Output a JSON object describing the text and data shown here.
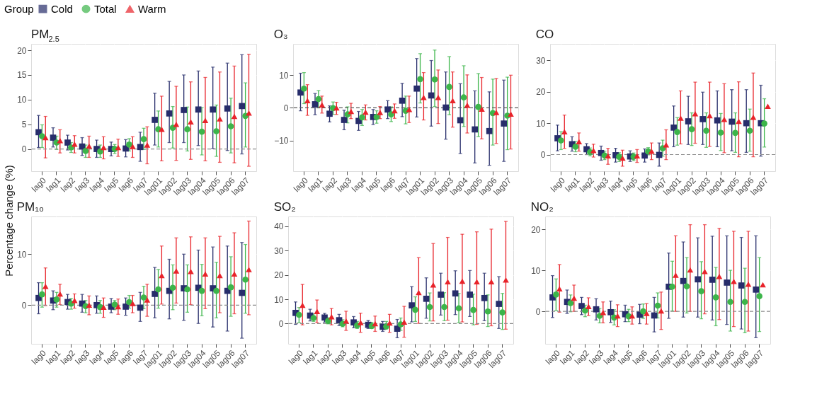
{
  "chart_data": [
    {
      "type": "scatter",
      "title": "PM$_{2.5}$",
      "ylabel": "Percentage change (%)",
      "legend_title": "Group",
      "legend": "top",
      "grid": true,
      "categories": [
        "lag0",
        "lag1",
        "lag2",
        "lag3",
        "lag4",
        "lag5",
        "lag6",
        "lag7",
        "lag01",
        "lag02",
        "lag03",
        "lag04",
        "lag05",
        "lag06",
        "lag07"
      ],
      "ylim": [
        -4.5,
        21.3
      ],
      "yticks": [
        0,
        5,
        10,
        15,
        20
      ],
      "ref_lines": [
        {
          "axis": "y",
          "value": 0,
          "color": "#8c8c8c",
          "line_style": "dashed"
        }
      ],
      "series": [
        {
          "name": "Cold",
          "color": "#272d6b",
          "marker": "square",
          "values": [
            3.4,
            2.3,
            1.3,
            0.5,
            0.0,
            0.0,
            0.1,
            0.4,
            5.9,
            7.2,
            7.9,
            8.0,
            8.0,
            8.2,
            8.7
          ],
          "errors": [
            [
              0.3,
              6.8
            ],
            [
              0.4,
              4.3
            ],
            [
              -0.2,
              2.8
            ],
            [
              -1.3,
              2.3
            ],
            [
              -1.7,
              1.8
            ],
            [
              -1.4,
              1.4
            ],
            [
              -1.6,
              1.9
            ],
            [
              -2.5,
              3.4
            ],
            [
              0.8,
              11.3
            ],
            [
              1.3,
              13.7
            ],
            [
              1.3,
              15.0
            ],
            [
              0.7,
              15.8
            ],
            [
              0.1,
              16.6
            ],
            [
              -0.3,
              17.4
            ],
            [
              -1.0,
              19.1
            ]
          ]
        },
        {
          "name": "Total",
          "color": "#3cb54a",
          "marker": "circle",
          "values": [
            2.6,
            1.3,
            0.3,
            -0.4,
            -0.5,
            0.0,
            0.9,
            2.0,
            4.0,
            4.3,
            4.0,
            3.5,
            3.6,
            4.6,
            6.7
          ],
          "errors": [
            [
              0.3,
              4.9
            ],
            [
              -0.1,
              2.6
            ],
            [
              -0.7,
              1.3
            ],
            [
              -1.7,
              0.8
            ],
            [
              -1.7,
              0.8
            ],
            [
              -0.9,
              0.9
            ],
            [
              -0.4,
              2.1
            ],
            [
              -0.1,
              4.2
            ],
            [
              0.4,
              7.7
            ],
            [
              0.2,
              8.6
            ],
            [
              -0.4,
              8.5
            ],
            [
              -1.2,
              8.4
            ],
            [
              -1.5,
              8.9
            ],
            [
              -0.8,
              10.3
            ],
            [
              0.4,
              13.4
            ]
          ]
        },
        {
          "name": "Warm",
          "color": "#e8232a",
          "marker": "triangle",
          "values": [
            2.3,
            1.7,
            1.0,
            0.6,
            0.3,
            0.3,
            0.5,
            0.8,
            4.0,
            5.0,
            5.5,
            5.8,
            6.1,
            6.6,
            7.3
          ],
          "errors": [
            [
              -1.8,
              6.6
            ],
            [
              -0.8,
              3.9
            ],
            [
              -0.8,
              2.7
            ],
            [
              -1.7,
              2.6
            ],
            [
              -2.0,
              2.5
            ],
            [
              -1.5,
              2.0
            ],
            [
              -1.7,
              2.5
            ],
            [
              -3.0,
              4.5
            ],
            [
              -2.4,
              10.7
            ],
            [
              -2.3,
              12.7
            ],
            [
              -2.1,
              13.6
            ],
            [
              -2.4,
              14.5
            ],
            [
              -2.7,
              15.6
            ],
            [
              -2.8,
              16.8
            ],
            [
              -3.5,
              19.2
            ]
          ]
        }
      ]
    },
    {
      "type": "scatter",
      "title": "O₃",
      "grid": true,
      "categories": [
        "lag0",
        "lag1",
        "lag2",
        "lag3",
        "lag4",
        "lag5",
        "lag6",
        "lag7",
        "lag01",
        "lag02",
        "lag03",
        "lag04",
        "lag05",
        "lag06",
        "lag07"
      ],
      "ylim": [
        -19.4,
        19.6
      ],
      "yticks": [
        -10,
        0,
        10
      ],
      "ref_lines": [
        {
          "axis": "y",
          "value": 0,
          "color": "#595959",
          "line_style": "dashed"
        }
      ],
      "series": [
        {
          "color": "#272d6b",
          "marker": "square",
          "values": [
            4.7,
            1.1,
            -1.8,
            -3.7,
            -4.0,
            -2.8,
            -0.5,
            2.2,
            5.9,
            3.8,
            0.1,
            -3.8,
            -6.6,
            -7.1,
            -4.8
          ],
          "errors": [
            [
              -0.9,
              10.6
            ],
            [
              -2.1,
              4.4
            ],
            [
              -4.3,
              0.6
            ],
            [
              -6.7,
              -0.7
            ],
            [
              -6.9,
              -1.1
            ],
            [
              -5.1,
              -0.5
            ],
            [
              -3.3,
              2.2
            ],
            [
              -2.7,
              7.5
            ],
            [
              -2.8,
              15.1
            ],
            [
              -5.6,
              14.5
            ],
            [
              -9.6,
              11.0
            ],
            [
              -14.0,
              7.4
            ],
            [
              -16.9,
              5.2
            ],
            [
              -17.6,
              4.9
            ],
            [
              -16.4,
              8.5
            ]
          ]
        },
        {
          "color": "#3cb54a",
          "marker": "circle",
          "values": [
            5.9,
            2.7,
            -0.1,
            -2.0,
            -2.9,
            -2.8,
            -2.0,
            -0.9,
            8.8,
            8.7,
            6.4,
            3.2,
            0.3,
            -1.6,
            -2.4
          ],
          "errors": [
            [
              1.3,
              10.8
            ],
            [
              0.0,
              5.3
            ],
            [
              -2.0,
              1.8
            ],
            [
              -4.6,
              0.3
            ],
            [
              -5.4,
              -0.5
            ],
            [
              -4.7,
              -0.9
            ],
            [
              -4.2,
              0.3
            ],
            [
              -4.9,
              3.6
            ],
            [
              1.5,
              16.6
            ],
            [
              0.4,
              17.7
            ],
            [
              -2.1,
              15.7
            ],
            [
              -5.7,
              12.9
            ],
            [
              -8.8,
              10.5
            ],
            [
              -11.4,
              8.8
            ],
            [
              -12.8,
              9.4
            ]
          ]
        },
        {
          "color": "#e8232a",
          "marker": "triangle",
          "values": [
            2.2,
            0.9,
            0.0,
            -1.1,
            -1.3,
            -1.4,
            -0.9,
            -0.5,
            3.2,
            3.2,
            2.2,
            0.8,
            -0.4,
            -1.4,
            -1.9
          ],
          "errors": [
            [
              -2.3,
              7.1
            ],
            [
              -1.6,
              3.6
            ],
            [
              -2.0,
              1.7
            ],
            [
              -3.3,
              1.4
            ],
            [
              -3.7,
              0.9
            ],
            [
              -3.3,
              0.4
            ],
            [
              -3.2,
              1.2
            ],
            [
              -4.5,
              3.6
            ],
            [
              -3.7,
              10.8
            ],
            [
              -4.8,
              11.6
            ],
            [
              -5.9,
              11.0
            ],
            [
              -7.7,
              10.1
            ],
            [
              -9.5,
              9.3
            ],
            [
              -10.9,
              9.0
            ],
            [
              -12.6,
              10.0
            ]
          ]
        }
      ]
    },
    {
      "type": "scatter",
      "title": "CO",
      "grid": true,
      "categories": [
        "lag0",
        "lag1",
        "lag2",
        "lag3",
        "lag4",
        "lag5",
        "lag6",
        "lag7",
        "lag01",
        "lag02",
        "lag03",
        "lag04",
        "lag05",
        "lag06",
        "lag07"
      ],
      "ylim": [
        -5.3,
        35.3
      ],
      "yticks": [
        0,
        10,
        20,
        30
      ],
      "ref_lines": [
        {
          "axis": "y",
          "value": 0,
          "color": "#8c8c8c",
          "line_style": "dashed"
        }
      ],
      "series": [
        {
          "color": "#272d6b",
          "marker": "square",
          "values": [
            5.2,
            3.3,
            1.7,
            0.5,
            -0.2,
            -0.6,
            -0.3,
            -0.1,
            8.6,
            10.6,
            11.3,
            10.9,
            10.5,
            10.0,
            10.0
          ],
          "errors": [
            [
              1.2,
              9.4
            ],
            [
              1.1,
              5.7
            ],
            [
              0.0,
              3.5
            ],
            [
              -1.8,
              2.7
            ],
            [
              -2.4,
              2.0
            ],
            [
              -2.2,
              1.2
            ],
            [
              -2.4,
              1.8
            ],
            [
              -3.7,
              3.7
            ],
            [
              2.5,
              15.5
            ],
            [
              3.2,
              18.6
            ],
            [
              3.2,
              19.9
            ],
            [
              2.5,
              20.3
            ],
            [
              1.2,
              20.7
            ],
            [
              0.7,
              20.7
            ],
            [
              -0.5,
              22.1
            ]
          ]
        },
        {
          "color": "#3cb54a",
          "marker": "circle",
          "values": [
            4.5,
            2.5,
            0.8,
            -0.3,
            -0.7,
            -0.7,
            1.0,
            2.0,
            7.2,
            8.1,
            7.6,
            7.0,
            6.9,
            7.6,
            9.9
          ],
          "errors": [
            [
              1.6,
              7.3
            ],
            [
              0.9,
              4.2
            ],
            [
              -0.4,
              2.1
            ],
            [
              -1.6,
              1.1
            ],
            [
              -2.2,
              0.6
            ],
            [
              -1.9,
              0.5
            ],
            [
              -0.1,
              2.2
            ],
            [
              -0.5,
              4.6
            ],
            [
              3.0,
              11.8
            ],
            [
              2.9,
              13.3
            ],
            [
              2.3,
              13.3
            ],
            [
              1.3,
              13.1
            ],
            [
              0.7,
              13.3
            ],
            [
              1.1,
              14.5
            ],
            [
              2.4,
              17.8
            ]
          ]
        },
        {
          "color": "#e8232a",
          "marker": "triangle",
          "values": [
            7.3,
            4.1,
            1.3,
            -0.4,
            -1.1,
            -0.4,
            1.1,
            3.1,
            11.6,
            13.0,
            12.4,
            11.2,
            10.6,
            11.9,
            15.4
          ],
          "errors": [
            [
              2.0,
              12.6
            ],
            [
              1.1,
              6.9
            ],
            [
              -0.8,
              3.3
            ],
            [
              -3.1,
              2.0
            ],
            [
              -3.7,
              1.4
            ],
            [
              -2.5,
              1.6
            ],
            [
              -1.6,
              3.7
            ],
            [
              -1.6,
              7.9
            ],
            [
              3.4,
              20.3
            ],
            [
              3.6,
              23.1
            ],
            [
              2.6,
              23.1
            ],
            [
              0.6,
              22.6
            ],
            [
              -0.7,
              23.2
            ],
            [
              -0.7,
              26.0
            ],
            null
          ]
        }
      ]
    },
    {
      "type": "scatter",
      "title": "PM₁₀",
      "grid": true,
      "categories": [
        "lag0",
        "lag1",
        "lag2",
        "lag3",
        "lag4",
        "lag5",
        "lag6",
        "lag7",
        "lag01",
        "lag02",
        "lag03",
        "lag04",
        "lag05",
        "lag06",
        "lag07"
      ],
      "ylim": [
        -7.6,
        17.4
      ],
      "yticks": [
        0,
        10
      ],
      "ref_lines": [
        {
          "axis": "y",
          "value": 0,
          "color": "#8c8c8c",
          "line_style": "dashed"
        }
      ],
      "series": [
        {
          "color": "#272d6b",
          "marker": "square",
          "values": [
            1.4,
            0.9,
            0.6,
            0.3,
            0.0,
            -0.3,
            -0.3,
            -0.5,
            2.2,
            2.8,
            3.3,
            3.4,
            3.3,
            2.8,
            2.4
          ],
          "errors": [
            [
              -1.7,
              4.4
            ],
            [
              -0.9,
              2.8
            ],
            [
              -0.8,
              2.1
            ],
            [
              -1.4,
              2.1
            ],
            [
              -1.6,
              1.8
            ],
            [
              -1.5,
              1.3
            ],
            [
              -2.0,
              1.4
            ],
            [
              -3.2,
              2.5
            ],
            [
              -2.5,
              7.4
            ],
            [
              -2.7,
              9.0
            ],
            [
              -3.0,
              10.0
            ],
            [
              -3.6,
              10.8
            ],
            [
              -4.3,
              11.4
            ],
            [
              -5.1,
              11.6
            ],
            [
              -6.5,
              12.3
            ]
          ]
        },
        {
          "color": "#3cb54a",
          "marker": "circle",
          "values": [
            2.1,
            1.1,
            0.3,
            -0.2,
            -0.4,
            0.1,
            0.6,
            1.5,
            3.1,
            3.4,
            3.1,
            2.8,
            2.8,
            3.5,
            5.0
          ],
          "errors": [
            [
              -0.4,
              4.4
            ],
            [
              -0.4,
              2.5
            ],
            [
              -0.8,
              1.3
            ],
            [
              -1.5,
              0.9
            ],
            [
              -1.6,
              0.9
            ],
            [
              -0.9,
              0.9
            ],
            [
              -0.6,
              1.9
            ],
            [
              -0.7,
              3.7
            ],
            [
              -0.6,
              7.0
            ],
            [
              -0.9,
              7.9
            ],
            [
              -1.4,
              7.9
            ],
            [
              -2.1,
              8.0
            ],
            [
              -2.5,
              8.4
            ],
            [
              -2.2,
              9.5
            ],
            [
              -1.6,
              11.9
            ]
          ]
        },
        {
          "color": "#e8232a",
          "marker": "triangle",
          "values": [
            3.7,
            2.2,
            0.9,
            0.0,
            -0.4,
            -0.3,
            0.3,
            1.0,
            5.8,
            6.7,
            6.6,
            6.1,
            5.8,
            6.1,
            7.0
          ],
          "errors": [
            [
              -0.1,
              7.3
            ],
            [
              0.1,
              4.1
            ],
            [
              -0.6,
              2.2
            ],
            [
              -1.9,
              1.8
            ],
            [
              -2.4,
              1.4
            ],
            [
              -1.8,
              1.2
            ],
            [
              -1.5,
              1.9
            ],
            [
              -2.2,
              4.1
            ],
            [
              0.2,
              11.6
            ],
            [
              0.4,
              13.2
            ],
            [
              0.1,
              13.4
            ],
            [
              -0.7,
              13.2
            ],
            [
              -1.5,
              13.5
            ],
            [
              -1.7,
              14.2
            ],
            [
              -1.9,
              16.5
            ]
          ]
        }
      ]
    },
    {
      "type": "scatter",
      "title": "SO₂",
      "grid": true,
      "categories": [
        "lag0",
        "lag1",
        "lag2",
        "lag3",
        "lag4",
        "lag5",
        "lag6",
        "lag7",
        "lag01",
        "lag02",
        "lag03",
        "lag04",
        "lag05",
        "lag06",
        "lag07"
      ],
      "ylim": [
        -8.3,
        44
      ],
      "yticks": [
        0,
        10,
        20,
        30,
        40
      ],
      "ref_lines": [
        {
          "axis": "y",
          "value": 0,
          "color": "#8c8c8c",
          "line_style": "dashed"
        }
      ],
      "series": [
        {
          "color": "#272d6b",
          "marker": "square",
          "values": [
            4.4,
            3.3,
            2.5,
            1.4,
            0.5,
            -0.5,
            -1.3,
            -2.1,
            7.5,
            10.2,
            11.9,
            12.4,
            11.9,
            10.5,
            8.1
          ],
          "errors": [
            [
              -0.3,
              8.9
            ],
            [
              1.1,
              5.9
            ],
            [
              0.6,
              4.2
            ],
            [
              -0.8,
              3.8
            ],
            [
              -1.7,
              2.9
            ],
            [
              -2.0,
              1.3
            ],
            [
              -3.2,
              0.9
            ],
            [
              -5.8,
              1.7
            ],
            [
              0.7,
              15.2
            ],
            [
              2.2,
              18.8
            ],
            [
              3.5,
              20.7
            ],
            [
              3.7,
              21.7
            ],
            [
              2.9,
              21.8
            ],
            [
              1.2,
              20.7
            ],
            [
              -2.0,
              19.3
            ]
          ]
        },
        {
          "color": "#3cb54a",
          "marker": "circle",
          "values": [
            3.6,
            2.3,
            1.1,
            -0.1,
            -0.7,
            -1.0,
            -1.2,
            -0.3,
            5.7,
            6.8,
            6.8,
            6.3,
            5.6,
            5.0,
            4.6
          ],
          "errors": [
            [
              0.4,
              6.6
            ],
            [
              0.9,
              4.0
            ],
            [
              -0.1,
              2.4
            ],
            [
              -1.3,
              1.6
            ],
            [
              -2.0,
              0.9
            ],
            [
              -2.0,
              0.5
            ],
            [
              -2.1,
              0.9
            ],
            [
              -2.8,
              2.3
            ],
            [
              0.9,
              11.0
            ],
            [
              1.1,
              12.6
            ],
            [
              1.2,
              12.7
            ],
            [
              0.4,
              12.4
            ],
            [
              -0.5,
              12.1
            ],
            [
              -1.2,
              11.8
            ],
            [
              -2.4,
              12.4
            ]
          ]
        },
        {
          "color": "#e8232a",
          "marker": "triangle",
          "values": [
            7.5,
            5.0,
            2.8,
            1.1,
            0.4,
            0.0,
            0.3,
            0.6,
            12.8,
            15.9,
            17.2,
            17.4,
            17.2,
            17.2,
            17.9
          ],
          "errors": [
            [
              -0.5,
              16.1
            ],
            [
              0.4,
              9.7
            ],
            [
              -0.5,
              6.2
            ],
            [
              -2.8,
              5.1
            ],
            [
              -3.6,
              4.3
            ],
            [
              -3.2,
              3.1
            ],
            [
              -3.6,
              3.8
            ],
            [
              -5.6,
              7.1
            ],
            [
              0.1,
              27.1
            ],
            [
              1.1,
              32.9
            ],
            [
              1.4,
              35.4
            ],
            [
              0.7,
              36.7
            ],
            [
              -0.3,
              37.7
            ],
            [
              -0.9,
              38.8
            ],
            [
              -2.3,
              42.0
            ]
          ]
        }
      ]
    },
    {
      "type": "scatter",
      "title": "NO₂",
      "grid": true,
      "categories": [
        "lag0",
        "lag1",
        "lag2",
        "lag3",
        "lag4",
        "lag5",
        "lag6",
        "lag7",
        "lag01",
        "lag02",
        "lag03",
        "lag04",
        "lag05",
        "lag06",
        "lag07"
      ],
      "ylim": [
        -7.9,
        23.1
      ],
      "yticks": [
        0,
        10,
        20
      ],
      "ref_lines": [
        {
          "axis": "y",
          "value": 0,
          "color": "#8c8c8c",
          "line_style": "dashed"
        }
      ],
      "series": [
        {
          "color": "#272d6b",
          "marker": "square",
          "values": [
            3.4,
            2.3,
            1.3,
            0.5,
            -0.2,
            -0.7,
            -0.8,
            -1.0,
            6.0,
            7.4,
            7.8,
            7.7,
            7.0,
            6.3,
            5.3
          ],
          "errors": [
            [
              -1.5,
              8.7
            ],
            [
              -0.5,
              5.2
            ],
            [
              -0.8,
              3.4
            ],
            [
              -2.1,
              3.1
            ],
            [
              -2.7,
              2.5
            ],
            [
              -2.5,
              1.5
            ],
            [
              -3.0,
              1.7
            ],
            [
              -5.0,
              3.4
            ],
            [
              -1.7,
              14.2
            ],
            [
              -1.4,
              16.9
            ],
            [
              -1.4,
              17.9
            ],
            [
              -2.1,
              18.3
            ],
            [
              -3.2,
              18.4
            ],
            [
              -4.3,
              18.0
            ],
            [
              -6.4,
              18.4
            ]
          ]
        },
        {
          "color": "#3cb54a",
          "marker": "circle",
          "values": [
            4.1,
            2.0,
            0.2,
            -1.1,
            -1.5,
            -1.2,
            0.0,
            1.4,
            6.0,
            6.1,
            4.9,
            3.4,
            2.3,
            2.3,
            3.7
          ],
          "errors": [
            [
              0.2,
              7.9
            ],
            [
              -0.1,
              4.0
            ],
            [
              -1.3,
              1.5
            ],
            [
              -2.8,
              0.7
            ],
            [
              -3.3,
              0.4
            ],
            [
              -2.5,
              0.5
            ],
            [
              -1.7,
              1.8
            ],
            [
              -1.6,
              4.5
            ],
            [
              0.1,
              12.2
            ],
            [
              -0.4,
              13.1
            ],
            [
              -1.8,
              12.1
            ],
            [
              -3.5,
              10.7
            ],
            [
              -4.8,
              10.0
            ],
            [
              -5.2,
              10.5
            ],
            [
              -4.9,
              13.1
            ]
          ]
        },
        {
          "color": "#e8232a",
          "marker": "triangle",
          "values": [
            5.5,
            3.2,
            1.2,
            -0.3,
            -1.1,
            -1.1,
            -0.5,
            0.1,
            8.8,
            10.1,
            9.7,
            8.5,
            7.3,
            6.6,
            6.5
          ],
          "errors": [
            [
              -0.2,
              11.4
            ],
            [
              0.0,
              6.4
            ],
            [
              -1.0,
              3.3
            ],
            [
              -2.8,
              2.3
            ],
            [
              -3.7,
              1.6
            ],
            [
              -3.1,
              1.1
            ],
            [
              -3.1,
              1.9
            ],
            [
              -4.4,
              4.7
            ],
            [
              0.0,
              18.4
            ],
            [
              0.0,
              21.1
            ],
            [
              -0.6,
              21.1
            ],
            [
              -2.0,
              20.2
            ],
            [
              -3.7,
              19.5
            ],
            [
              -4.8,
              19.5
            ],
            null
          ]
        }
      ]
    }
  ]
}
